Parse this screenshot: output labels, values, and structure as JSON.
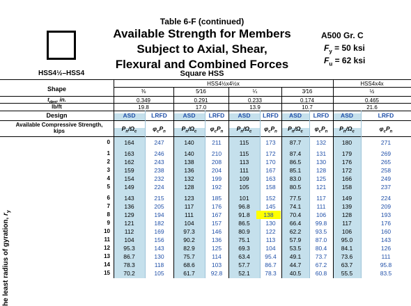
{
  "header": {
    "table_title": "Table 6-F (continued)",
    "heading_lines": [
      "Available Strength for Members",
      "Subject to Axial, Shear,",
      "Flexural and Combined Forces"
    ],
    "material": "A500 Gr. C",
    "fy": "F_y = 50 ksi",
    "fu": "F_u = 62 ksi",
    "section_type": "Square HSS",
    "shape_range": "HSS4½–HSS4"
  },
  "labels": {
    "shape": "Shape",
    "tdes": "t_des, in.",
    "lbft": "lb/ft",
    "design": "Design",
    "avail": "Available Compressive Strength, kips",
    "side": "he least radius of gyration, r_y"
  },
  "shapes": [
    {
      "name": "HSS4½x4½x",
      "sizes": [
        "⅜",
        "5⁄16",
        "¼",
        "3⁄16",
        "⅛"
      ]
    },
    {
      "name": "HSS4x4x",
      "sizes": [
        "½"
      ]
    }
  ],
  "tdes": [
    "0.349",
    "0.291",
    "0.233",
    "0.174",
    "0.116",
    "0.465"
  ],
  "lbft": [
    "19.8",
    "17.0",
    "13.9",
    "10.7",
    "7.3",
    "21.6"
  ],
  "design_labels": {
    "asd": "ASD",
    "lrfd": "LRFD"
  },
  "strength_labels": {
    "asd": "P_n/Ω_c",
    "lrfd": "φ_cP_n"
  },
  "rows": [
    {
      "k": "0",
      "v": [
        "164",
        "247",
        "140",
        "211",
        "115",
        "173",
        "87.7",
        "132",
        "180",
        "271"
      ]
    },
    {
      "k": "1",
      "v": [
        "163",
        "246",
        "140",
        "210",
        "115",
        "172",
        "87.4",
        "131",
        "179",
        "269"
      ]
    },
    {
      "k": "2",
      "v": [
        "162",
        "243",
        "138",
        "208",
        "113",
        "170",
        "86.5",
        "130",
        "176",
        "265"
      ]
    },
    {
      "k": "3",
      "v": [
        "159",
        "238",
        "136",
        "204",
        "111",
        "167",
        "85.1",
        "128",
        "172",
        "258"
      ]
    },
    {
      "k": "4",
      "v": [
        "154",
        "232",
        "132",
        "199",
        "109",
        "163",
        "83.0",
        "125",
        "166",
        "249"
      ]
    },
    {
      "k": "5",
      "v": [
        "149",
        "224",
        "128",
        "192",
        "105",
        "158",
        "80.5",
        "121",
        "158",
        "237"
      ]
    },
    {
      "k": "6",
      "v": [
        "143",
        "215",
        "123",
        "185",
        "101",
        "152",
        "77.5",
        "117",
        "149",
        "224"
      ]
    },
    {
      "k": "7",
      "v": [
        "136",
        "205",
        "117",
        "176",
        "96.8",
        "145",
        "74.1",
        "111",
        "139",
        "209"
      ]
    },
    {
      "k": "8",
      "v": [
        "129",
        "194",
        "111",
        "167",
        "91.8",
        "138",
        "70.4",
        "106",
        "128",
        "193"
      ]
    },
    {
      "k": "9",
      "v": [
        "121",
        "182",
        "104",
        "157",
        "86.5",
        "130",
        "66.4",
        "99.8",
        "117",
        "176"
      ]
    },
    {
      "k": "10",
      "v": [
        "112",
        "169",
        "97.3",
        "146",
        "80.9",
        "122",
        "62.2",
        "93.5",
        "106",
        "160"
      ]
    },
    {
      "k": "11",
      "v": [
        "104",
        "156",
        "90.2",
        "136",
        "75.1",
        "113",
        "57.9",
        "87.0",
        "95.0",
        "143"
      ]
    },
    {
      "k": "12",
      "v": [
        "95.3",
        "143",
        "82.9",
        "125",
        "69.3",
        "104",
        "53.5",
        "80.4",
        "84.1",
        "126"
      ]
    },
    {
      "k": "13",
      "v": [
        "86.7",
        "130",
        "75.7",
        "114",
        "63.4",
        "95.4",
        "49.1",
        "73.7",
        "73.6",
        "111"
      ]
    },
    {
      "k": "14",
      "v": [
        "78.3",
        "118",
        "68.6",
        "103",
        "57.7",
        "86.7",
        "44.7",
        "67.2",
        "63.7",
        "95.8"
      ]
    },
    {
      "k": "15",
      "v": [
        "70.2",
        "105",
        "61.7",
        "92.8",
        "52.1",
        "78.3",
        "40.5",
        "60.8",
        "55.5",
        "83.5"
      ]
    }
  ]
}
